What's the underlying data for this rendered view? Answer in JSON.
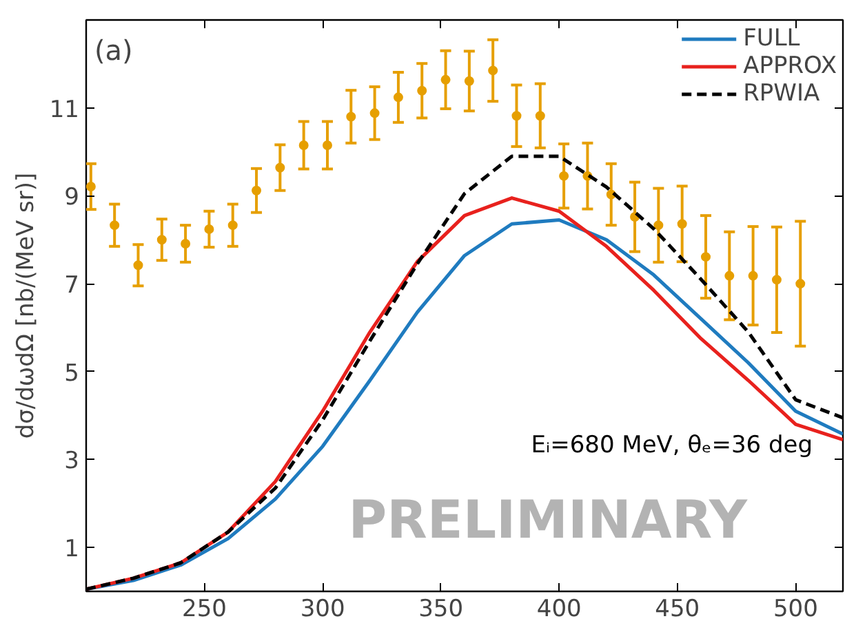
{
  "chart_data": {
    "type": "line",
    "ylabel": "dσ/dωdΩ [nb/(MeV sr)]",
    "annotations": [
      "(a)",
      "Eᵢ=680 MeV, θₑ=36 deg",
      "PRELIMINARY"
    ],
    "xlim": [
      200,
      520
    ],
    "ylim": [
      0,
      13
    ],
    "xticks": [
      250,
      300,
      350,
      400,
      450,
      500
    ],
    "yticks": [
      1,
      3,
      5,
      7,
      9,
      11
    ],
    "grid": false,
    "legend": "top right",
    "series": [
      {
        "type": "scatter",
        "color": "#e69f00",
        "marker": "circle",
        "x": [
          202,
          212,
          222,
          232,
          242,
          252,
          262,
          272,
          282,
          292,
          302,
          312,
          322,
          332,
          342,
          352,
          362,
          372,
          382,
          392,
          402,
          412,
          422,
          432,
          442,
          452,
          462,
          472,
          482,
          492,
          502
        ],
        "values": [
          9.21,
          8.33,
          7.42,
          8.0,
          7.91,
          8.24,
          8.33,
          9.12,
          9.64,
          10.15,
          10.15,
          10.8,
          10.88,
          11.24,
          11.39,
          11.64,
          11.61,
          11.85,
          10.82,
          10.82,
          9.45,
          9.45,
          9.03,
          8.52,
          8.33,
          8.36,
          7.61,
          7.18,
          7.18,
          7.09,
          7.0
        ],
        "errors": [
          0.52,
          0.48,
          0.47,
          0.47,
          0.42,
          0.41,
          0.48,
          0.5,
          0.52,
          0.54,
          0.54,
          0.6,
          0.6,
          0.57,
          0.62,
          0.66,
          0.68,
          0.7,
          0.7,
          0.73,
          0.73,
          0.75,
          0.7,
          0.79,
          0.84,
          0.86,
          0.94,
          1.0,
          1.12,
          1.2,
          1.42
        ]
      },
      {
        "name": "FULL",
        "color": "#1f7bbf",
        "line_style": "solid",
        "x": [
          200,
          220,
          240,
          260,
          280,
          300,
          320,
          340,
          360,
          380,
          400,
          420,
          440,
          460,
          480,
          500,
          520
        ],
        "values": [
          0.05,
          0.25,
          0.6,
          1.2,
          2.1,
          3.3,
          4.8,
          6.35,
          7.64,
          8.36,
          8.45,
          8.0,
          7.2,
          6.2,
          5.2,
          4.1,
          3.58
        ]
      },
      {
        "name": "APPROX",
        "color": "#e8211d",
        "line_style": "solid",
        "x": [
          200,
          220,
          240,
          260,
          280,
          300,
          320,
          340,
          360,
          380,
          400,
          420,
          440,
          460,
          480,
          500,
          520
        ],
        "values": [
          0.05,
          0.3,
          0.65,
          1.35,
          2.5,
          4.1,
          5.9,
          7.5,
          8.55,
          8.95,
          8.65,
          7.85,
          6.85,
          5.75,
          4.8,
          3.8,
          3.45
        ]
      },
      {
        "name": "RPWIA",
        "color": "#000000",
        "line_style": "dashed",
        "x": [
          200,
          220,
          240,
          260,
          280,
          300,
          320,
          340,
          360,
          380,
          400,
          420,
          440,
          460,
          480,
          500,
          520
        ],
        "values": [
          0.05,
          0.3,
          0.65,
          1.35,
          2.35,
          3.9,
          5.7,
          7.45,
          9.05,
          9.9,
          9.9,
          9.2,
          8.25,
          7.1,
          5.9,
          4.36,
          3.95
        ]
      }
    ]
  }
}
